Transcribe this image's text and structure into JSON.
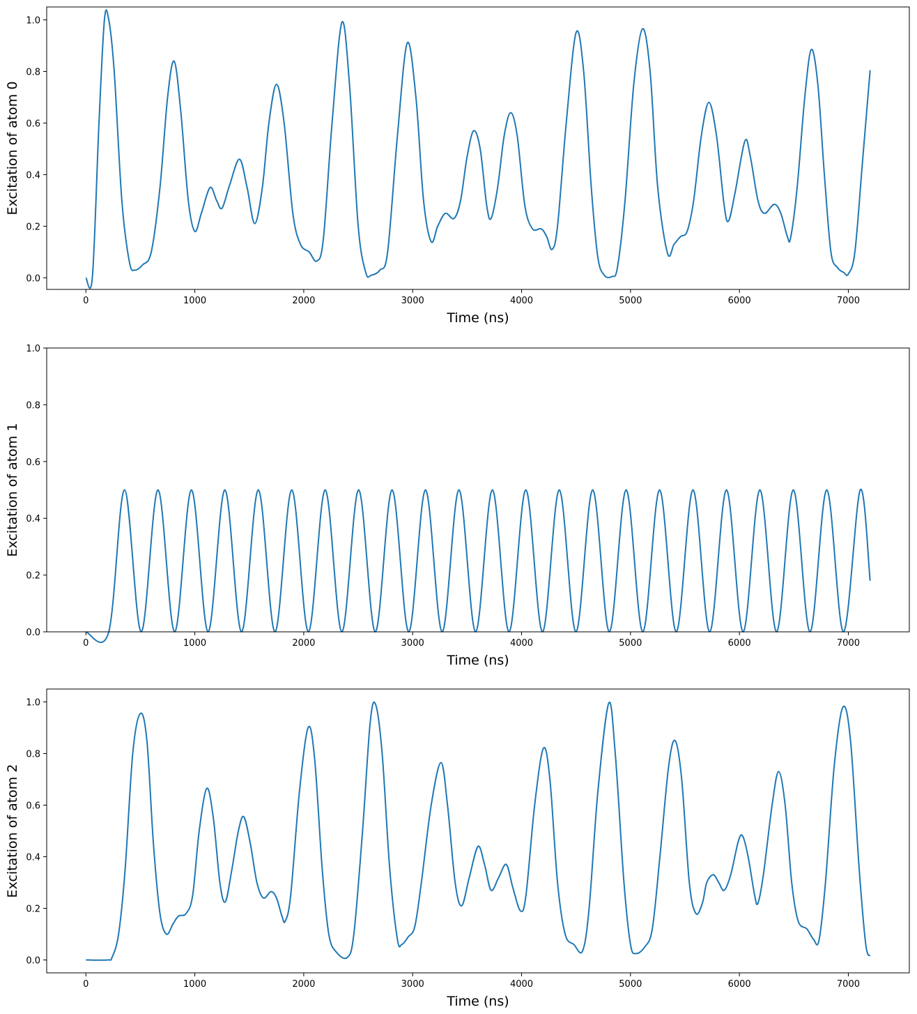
{
  "chart_data": [
    {
      "type": "line",
      "xlabel": "Time (ns)",
      "ylabel": "Excitation of atom 0",
      "color": "#1f77b4",
      "xlim": [
        -360,
        7560
      ],
      "ylim": [
        -0.045,
        1.05
      ],
      "xticks": [
        0,
        1000,
        2000,
        3000,
        4000,
        5000,
        6000,
        7000
      ],
      "yticks": [
        {
          "value": 0,
          "label": "0.0"
        },
        {
          "value": 0.2,
          "label": "0.2"
        },
        {
          "value": 0.4,
          "label": "0.4"
        },
        {
          "value": 0.6,
          "label": "0.6"
        },
        {
          "value": 0.8,
          "label": "0.8"
        },
        {
          "value": 1,
          "label": "1.0"
        }
      ],
      "x": [
        0,
        60,
        120,
        170,
        210,
        260,
        330,
        400,
        450,
        520,
        600,
        680,
        750,
        810,
        870,
        940,
        1000,
        1060,
        1140,
        1200,
        1250,
        1320,
        1410,
        1480,
        1550,
        1620,
        1680,
        1750,
        1820,
        1900,
        1970,
        2050,
        2120,
        2180,
        2260,
        2350,
        2420,
        2500,
        2570,
        2620,
        2700,
        2770,
        2860,
        2950,
        3030,
        3100,
        3170,
        3230,
        3300,
        3380,
        3440,
        3500,
        3560,
        3620,
        3680,
        3720,
        3780,
        3840,
        3900,
        3960,
        4030,
        4100,
        4180,
        4230,
        4280,
        4330,
        4410,
        4500,
        4570,
        4640,
        4700,
        4760,
        4830,
        4880,
        4950,
        5030,
        5110,
        5180,
        5250,
        5340,
        5400,
        5460,
        5520,
        5580,
        5650,
        5720,
        5790,
        5860,
        5900,
        5960,
        6050,
        6100,
        6170,
        6230,
        6320,
        6380,
        6440,
        6470,
        6530,
        6600,
        6660,
        6720,
        6780,
        6840,
        6900,
        6960,
        7000,
        7060,
        7130,
        7200
      ],
      "values": [
        0,
        0.005,
        0.6,
        1.0,
        1.0,
        0.8,
        0.3,
        0.06,
        0.03,
        0.05,
        0.1,
        0.35,
        0.7,
        0.84,
        0.65,
        0.3,
        0.18,
        0.25,
        0.35,
        0.3,
        0.27,
        0.36,
        0.46,
        0.35,
        0.21,
        0.35,
        0.6,
        0.75,
        0.6,
        0.25,
        0.13,
        0.1,
        0.065,
        0.15,
        0.6,
        0.99,
        0.75,
        0.2,
        0.02,
        0.01,
        0.03,
        0.1,
        0.55,
        0.91,
        0.7,
        0.3,
        0.14,
        0.2,
        0.25,
        0.23,
        0.3,
        0.47,
        0.57,
        0.5,
        0.28,
        0.23,
        0.35,
        0.55,
        0.64,
        0.55,
        0.28,
        0.19,
        0.19,
        0.16,
        0.11,
        0.2,
        0.6,
        0.95,
        0.8,
        0.35,
        0.08,
        0.01,
        0.005,
        0.04,
        0.3,
        0.75,
        0.965,
        0.8,
        0.35,
        0.095,
        0.13,
        0.16,
        0.18,
        0.3,
        0.55,
        0.68,
        0.55,
        0.28,
        0.22,
        0.33,
        0.53,
        0.47,
        0.3,
        0.25,
        0.285,
        0.25,
        0.16,
        0.155,
        0.35,
        0.7,
        0.885,
        0.75,
        0.4,
        0.1,
        0.04,
        0.02,
        0.015,
        0.1,
        0.45,
        0.805
      ]
    },
    {
      "type": "line",
      "xlabel": "Time (ns)",
      "ylabel": "Excitation of atom 1",
      "color": "#1f77b4",
      "xlim": [
        -360,
        7560
      ],
      "ylim": [
        0,
        1
      ],
      "xticks": [
        0,
        1000,
        2000,
        3000,
        4000,
        5000,
        6000,
        7000
      ],
      "yticks": [
        {
          "value": 0,
          "label": "0.0"
        },
        {
          "value": 0.2,
          "label": "0.2"
        },
        {
          "value": 0.4,
          "label": "0.4"
        },
        {
          "value": 0.6,
          "label": "0.6"
        },
        {
          "value": 0.8,
          "label": "0.8"
        },
        {
          "value": 1,
          "label": "1.0"
        }
      ],
      "x": [
        0,
        210,
        355,
        508,
        662,
        815,
        969,
        1122,
        1276,
        1429,
        1583,
        1736,
        1890,
        2043,
        2197,
        2350,
        2504,
        2657,
        2811,
        2964,
        3118,
        3271,
        3425,
        3578,
        3732,
        3885,
        4039,
        4192,
        4346,
        4499,
        4653,
        4806,
        4960,
        5113,
        5267,
        5420,
        5574,
        5727,
        5881,
        6034,
        6188,
        6341,
        6495,
        6648,
        6802,
        6955,
        7109,
        7200
      ],
      "values": [
        0,
        0,
        0.5,
        0,
        0.5,
        0,
        0.5,
        0,
        0.5,
        0,
        0.5,
        0,
        0.5,
        0,
        0.5,
        0,
        0.5,
        0,
        0.5,
        0,
        0.5,
        0,
        0.5,
        0,
        0.5,
        0,
        0.5,
        0,
        0.5,
        0,
        0.5,
        0,
        0.5,
        0,
        0.5,
        0,
        0.5,
        0,
        0.5,
        0,
        0.5,
        0,
        0.5,
        0,
        0.5,
        0,
        0.5,
        0.18
      ]
    },
    {
      "type": "line",
      "xlabel": "Time (ns)",
      "ylabel": "Excitation of atom 2",
      "color": "#1f77b4",
      "xlim": [
        -360,
        7560
      ],
      "ylim": [
        -0.05,
        1.05
      ],
      "xticks": [
        0,
        1000,
        2000,
        3000,
        4000,
        5000,
        6000,
        7000
      ],
      "yticks": [
        {
          "value": 0,
          "label": "0.0"
        },
        {
          "value": 0.2,
          "label": "0.2"
        },
        {
          "value": 0.4,
          "label": "0.4"
        },
        {
          "value": 0.6,
          "label": "0.6"
        },
        {
          "value": 0.8,
          "label": "0.8"
        },
        {
          "value": 1,
          "label": "1.0"
        }
      ],
      "x": [
        0,
        200,
        240,
        300,
        360,
        430,
        500,
        560,
        620,
        680,
        740,
        800,
        850,
        920,
        980,
        1040,
        1110,
        1170,
        1230,
        1280,
        1340,
        1400,
        1450,
        1510,
        1570,
        1630,
        1700,
        1750,
        1800,
        1830,
        1880,
        1960,
        2040,
        2100,
        2170,
        2230,
        2300,
        2400,
        2460,
        2540,
        2610,
        2660,
        2720,
        2790,
        2860,
        2900,
        2960,
        3020,
        3080,
        3170,
        3260,
        3320,
        3390,
        3450,
        3520,
        3600,
        3660,
        3720,
        3790,
        3860,
        3920,
        3990,
        4040,
        4120,
        4200,
        4260,
        4330,
        4400,
        4480,
        4560,
        4620,
        4700,
        4800,
        4860,
        4940,
        5000,
        5050,
        5130,
        5200,
        5270,
        5350,
        5410,
        5470,
        5540,
        5600,
        5660,
        5700,
        5760,
        5810,
        5860,
        5920,
        5990,
        6030,
        6080,
        6140,
        6170,
        6220,
        6300,
        6360,
        6420,
        6480,
        6540,
        6620,
        6680,
        6730,
        6790,
        6870,
        6950,
        7020,
        7100,
        7160,
        7200
      ],
      "values": [
        0,
        0,
        0.01,
        0.1,
        0.35,
        0.8,
        0.955,
        0.85,
        0.45,
        0.18,
        0.1,
        0.14,
        0.17,
        0.18,
        0.25,
        0.5,
        0.665,
        0.55,
        0.3,
        0.225,
        0.35,
        0.5,
        0.555,
        0.45,
        0.3,
        0.24,
        0.265,
        0.24,
        0.17,
        0.15,
        0.25,
        0.65,
        0.9,
        0.78,
        0.35,
        0.1,
        0.03,
        0.01,
        0.1,
        0.5,
        0.92,
        0.99,
        0.8,
        0.35,
        0.08,
        0.06,
        0.09,
        0.13,
        0.3,
        0.6,
        0.765,
        0.6,
        0.3,
        0.21,
        0.32,
        0.44,
        0.37,
        0.27,
        0.32,
        0.37,
        0.28,
        0.19,
        0.25,
        0.6,
        0.82,
        0.7,
        0.3,
        0.1,
        0.06,
        0.035,
        0.2,
        0.65,
        0.995,
        0.8,
        0.3,
        0.06,
        0.025,
        0.05,
        0.12,
        0.4,
        0.75,
        0.85,
        0.7,
        0.3,
        0.18,
        0.22,
        0.3,
        0.33,
        0.3,
        0.27,
        0.33,
        0.46,
        0.48,
        0.4,
        0.25,
        0.22,
        0.33,
        0.6,
        0.73,
        0.6,
        0.3,
        0.15,
        0.12,
        0.08,
        0.075,
        0.3,
        0.75,
        0.98,
        0.85,
        0.35,
        0.06,
        0.015
      ]
    }
  ]
}
